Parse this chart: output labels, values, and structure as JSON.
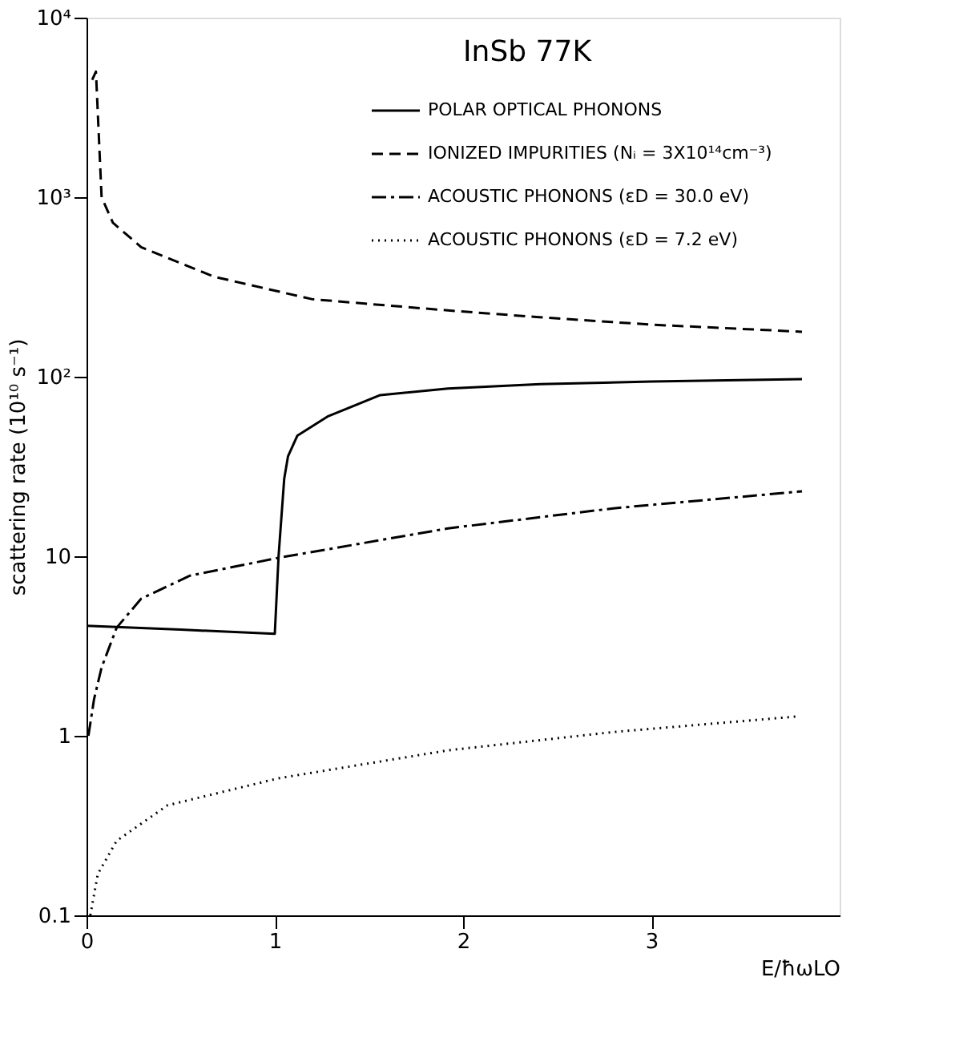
{
  "chart_data": {
    "type": "line",
    "title": "InSb 77K",
    "xlabel": "E/ħωLO",
    "ylabel": "scattering rate (10¹⁰ s⁻¹)",
    "log": "y",
    "grid": false,
    "legend": "top right",
    "marker": "none",
    "xlim": [
      0,
      4
    ],
    "xticks": [
      0,
      1,
      2,
      3
    ],
    "ylim": [
      0.1,
      10000
    ],
    "yticks": [
      0.1,
      1,
      10,
      {
        "value": 100,
        "label": "10²"
      },
      {
        "value": 1000,
        "label": "10³"
      },
      {
        "value": 10000,
        "label": "10⁴"
      }
    ],
    "series": [
      {
        "name": "POLAR OPTICAL PHONONS",
        "color": "#000000",
        "line_style": "solid",
        "x": [
          0,
          0.5,
          1.0,
          1.02,
          1.05,
          1.07,
          1.12,
          1.28,
          1.56,
          1.92,
          2.41,
          3.0,
          3.8
        ],
        "values": [
          4.1,
          3.9,
          3.7,
          10,
          27,
          36,
          47,
          60,
          79,
          86,
          91,
          94,
          97
        ]
      },
      {
        "name": "IONIZED IMPURITIES (Nᵢ = 3X10¹⁴cm⁻³)",
        "color": "#000000",
        "line_style": "dashed",
        "x": [
          0.03,
          0.05,
          0.08,
          0.14,
          0.29,
          0.68,
          1.2,
          1.92,
          2.39,
          3.0,
          3.8
        ],
        "values": [
          4500,
          5000,
          1000,
          720,
          527,
          360,
          270,
          234,
          215,
          195,
          178
        ]
      },
      {
        "name": "ACOUSTIC PHONONS (εD = 30.0 eV)",
        "color": "#000000",
        "line_style": "dashdot",
        "x": [
          0.01,
          0.04,
          0.08,
          0.16,
          0.29,
          0.55,
          1.02,
          1.92,
          2.8,
          3.8
        ],
        "values": [
          1.0,
          1.6,
          2.4,
          4.0,
          5.8,
          7.8,
          9.8,
          14.3,
          18.5,
          23
        ]
      },
      {
        "name": "ACOUSTIC PHONONS (εD = 7.2 eV)",
        "color": "#000000",
        "line_style": "dotted",
        "x": [
          0.02,
          0.06,
          0.16,
          0.43,
          1.02,
          1.92,
          2.8,
          3.77
        ],
        "values": [
          0.1,
          0.17,
          0.26,
          0.41,
          0.58,
          0.83,
          1.05,
          1.28
        ]
      }
    ]
  }
}
